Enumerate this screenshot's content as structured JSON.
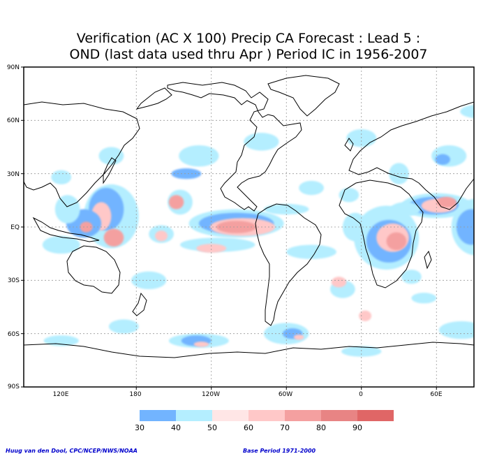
{
  "title": {
    "line1": "Verification (AC X 100) Precip CA Forecast : Lead 5 :",
    "line2": "OND (last data used thru Apr ) Period IC in 1956-2007"
  },
  "axes": {
    "lat_labels": [
      "90N",
      "60N",
      "30N",
      "EQ",
      "30S",
      "60S",
      "90S"
    ],
    "lat_values": [
      90,
      60,
      30,
      0,
      -30,
      -60,
      -90
    ],
    "lon_labels": [
      "120E",
      "180",
      "120W",
      "60W",
      "0",
      "60E"
    ],
    "lon_values": [
      120,
      180,
      240,
      300,
      360,
      420
    ],
    "lon_range": [
      30,
      390
    ],
    "lat_range": [
      -90,
      90
    ]
  },
  "legend": {
    "labels": [
      "30",
      "40",
      "50",
      "60",
      "70",
      "80",
      "90"
    ],
    "colors": [
      "#72b4ff",
      "#b4eeff",
      "#ffffff",
      "#ffdcdc",
      "#ffb4b4",
      "#ee9696",
      "#e07070"
    ],
    "bands": [
      {
        "from": 30,
        "to": 40,
        "color": "#72b4ff"
      },
      {
        "from": 40,
        "to": 50,
        "color": "#b4eeff"
      },
      {
        "from": 50,
        "to": 60,
        "color": "#ffe6e6"
      },
      {
        "from": 60,
        "to": 70,
        "color": "#ffc8c8"
      },
      {
        "from": 70,
        "to": 80,
        "color": "#f4a0a0"
      },
      {
        "from": 80,
        "to": 90,
        "color": "#e88484"
      },
      {
        "from": 90,
        "to": 100,
        "color": "#e06666"
      }
    ]
  },
  "credits": {
    "left": "Huug van den Dool, CPC/NCEP/NWS/NOAA",
    "right": "Base Period 1971-2000"
  },
  "colors": {
    "level_30": "#72b4ff",
    "level_40": "#b4eeff",
    "level_60": "#ffc8c8",
    "level_70": "#f4a0a0",
    "level_80": "#e88484",
    "grid": "#999999",
    "coast": "#000000"
  }
}
